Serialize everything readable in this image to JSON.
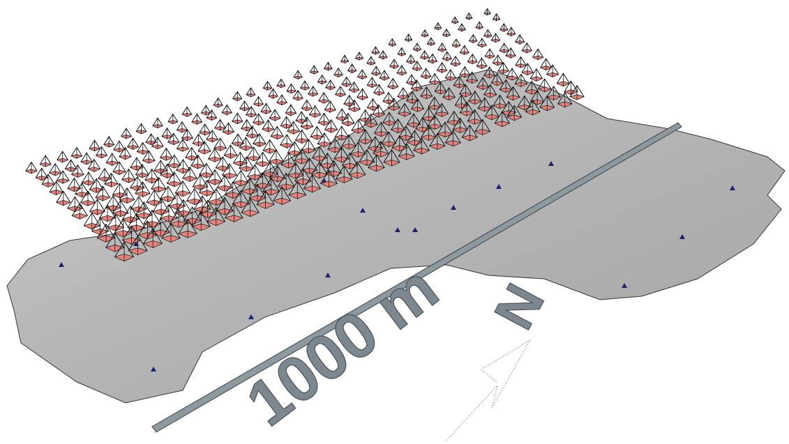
{
  "scale_bar": {
    "label": "1000 m"
  },
  "north_arrow": {
    "label": "N"
  }
}
